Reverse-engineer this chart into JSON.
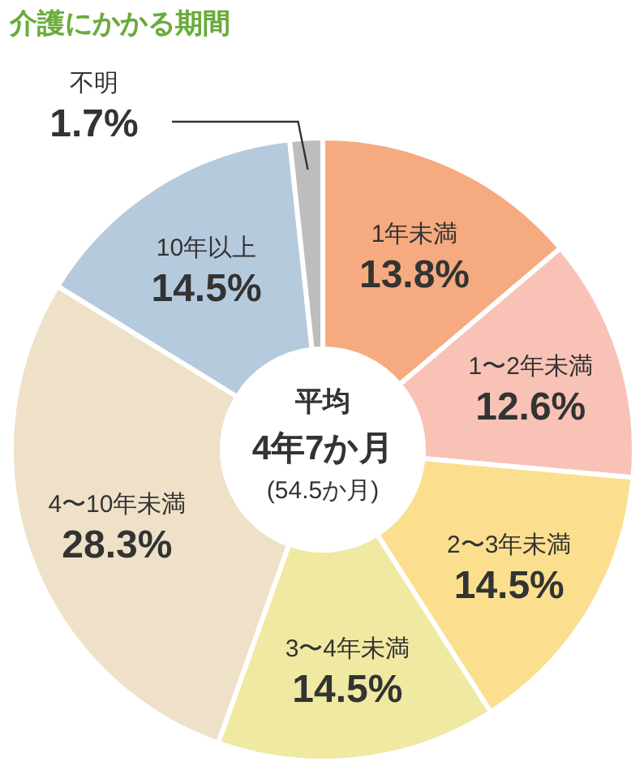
{
  "chart_data": {
    "type": "donut",
    "title": "介護にかかる期間",
    "categories": [
      "1年未満",
      "1〜2年未満",
      "2〜3年未満",
      "3〜4年未満",
      "4〜10年未満",
      "10年以上",
      "不明"
    ],
    "values": [
      13.8,
      12.6,
      14.5,
      14.5,
      28.3,
      14.5,
      1.7
    ],
    "value_labels": [
      "13.8%",
      "12.6%",
      "14.5%",
      "14.5%",
      "28.3%",
      "14.5%",
      "1.7%"
    ],
    "colors": [
      "#f6aa80",
      "#f8c3b6",
      "#fbdf8e",
      "#efe9a2",
      "#eee1c8",
      "#b6cadd",
      "#bdbdbd"
    ],
    "annotations": [
      "平均",
      "4年7か月",
      "(54.5か月)"
    ]
  }
}
